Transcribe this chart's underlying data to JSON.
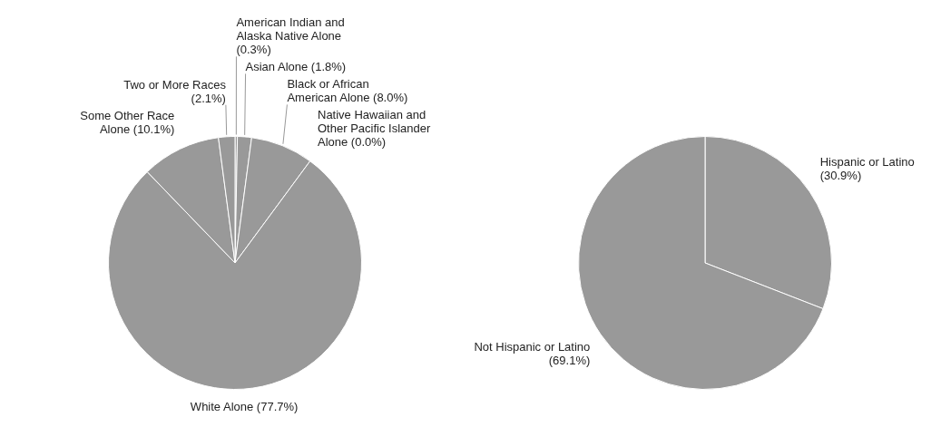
{
  "chart_data": [
    {
      "type": "pie",
      "categories": [
        "American Indian and Alaska Native Alone",
        "Asian Alone",
        "Black or African American Alone",
        "Native Hawaiian and Other Pacific Islander Alone",
        "White Alone",
        "Some Other Race Alone",
        "Two or More Races"
      ],
      "values": [
        0.3,
        1.8,
        8.0,
        0.0,
        77.7,
        10.1,
        2.1
      ],
      "value_labels": [
        "(0.3%)",
        "(1.8%)",
        "(8.0%)",
        "(0.0%)",
        "(77.7%)",
        "(10.1%)",
        "(2.1%)"
      ],
      "colors": [
        "#999999",
        "#999999",
        "#999999",
        "#999999",
        "#999999",
        "#999999",
        "#999999"
      ]
    },
    {
      "type": "pie",
      "categories": [
        "Hispanic or Latino",
        "Not Hispanic or Latino"
      ],
      "values": [
        30.9,
        69.1
      ],
      "value_labels": [
        "(30.9%)",
        "(69.1%)"
      ],
      "colors": [
        "#999999",
        "#999999"
      ]
    }
  ]
}
